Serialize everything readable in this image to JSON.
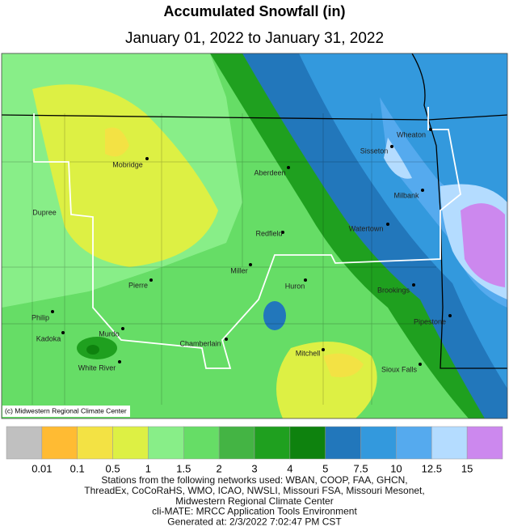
{
  "header": {
    "title": "Accumulated Snowfall (in)",
    "subtitle": "January 01, 2022 to January 31, 2022"
  },
  "cities": [
    "Wheaton",
    "Sisseton",
    "Mobridge",
    "Aberdeen",
    "Milbank",
    "Dupree",
    "Watertown",
    "Redfield",
    "Miller",
    "Pierre",
    "Huron",
    "Brookings",
    "Philip",
    "Pipestone",
    "Murdo",
    "Kadoka",
    "Chamberlain",
    "Mitchell",
    "White River",
    "Sioux Falls"
  ],
  "copyright": "(c) Midwestern Regional Climate Center",
  "legend": {
    "colors": [
      "#c0c0c0",
      "#ffbb33",
      "#f3e244",
      "#ddf044",
      "#88ee88",
      "#66dd66",
      "#44b444",
      "#1fa01f",
      "#0e820e",
      "#2277bb",
      "#3399dd",
      "#55aaee",
      "#b4dcff",
      "#cc88ee"
    ],
    "labels": [
      0.01,
      0.1,
      0.5,
      1,
      1.5,
      2,
      3,
      4,
      5,
      7.5,
      10,
      12.5,
      15
    ]
  },
  "footer": [
    "Stations from the following networks used: WBAN, COOP, FAA, GHCN,",
    "ThreadEx, CoCoRaHS, WMO, ICAO, NWSLI, Missouri FSA, Missouri Mesonet,",
    "Midwestern Regional Climate Center",
    "cli-MATE: MRCC Application Tools Environment",
    "Generated at: 2/3/2022 7:02:47 PM CST"
  ]
}
